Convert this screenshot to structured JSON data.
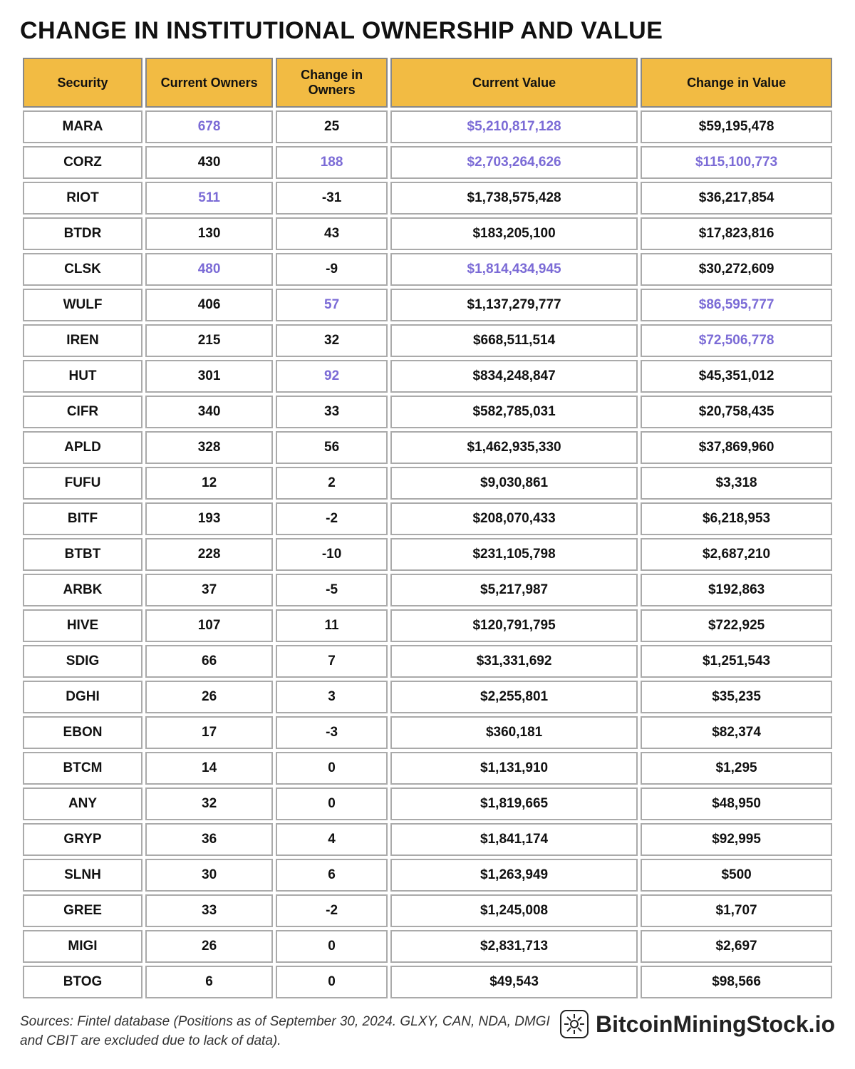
{
  "title": "CHANGE IN INSTITUTIONAL OWNERSHIP AND VALUE",
  "columns": [
    "Security",
    "Current Owners",
    "Change in Owners",
    "Current Value",
    "Change in Value"
  ],
  "highlight_color": "#7b6bd6",
  "header_bg": "#f2bb43",
  "rows": [
    {
      "security": "MARA",
      "owners": "678",
      "owners_hl": true,
      "chg_owners": "25",
      "chg_owners_hl": false,
      "value": "$5,210,817,128",
      "value_hl": true,
      "chg_value": "$59,195,478",
      "chg_value_hl": false
    },
    {
      "security": "CORZ",
      "owners": "430",
      "owners_hl": false,
      "chg_owners": "188",
      "chg_owners_hl": true,
      "value": "$2,703,264,626",
      "value_hl": true,
      "chg_value": "$115,100,773",
      "chg_value_hl": true
    },
    {
      "security": "RIOT",
      "owners": "511",
      "owners_hl": true,
      "chg_owners": "-31",
      "chg_owners_hl": false,
      "value": "$1,738,575,428",
      "value_hl": false,
      "chg_value": "$36,217,854",
      "chg_value_hl": false
    },
    {
      "security": "BTDR",
      "owners": "130",
      "owners_hl": false,
      "chg_owners": "43",
      "chg_owners_hl": false,
      "value": "$183,205,100",
      "value_hl": false,
      "chg_value": "$17,823,816",
      "chg_value_hl": false
    },
    {
      "security": "CLSK",
      "owners": "480",
      "owners_hl": true,
      "chg_owners": "-9",
      "chg_owners_hl": false,
      "value": "$1,814,434,945",
      "value_hl": true,
      "chg_value": "$30,272,609",
      "chg_value_hl": false
    },
    {
      "security": "WULF",
      "owners": "406",
      "owners_hl": false,
      "chg_owners": "57",
      "chg_owners_hl": true,
      "value": "$1,137,279,777",
      "value_hl": false,
      "chg_value": "$86,595,777",
      "chg_value_hl": true
    },
    {
      "security": "IREN",
      "owners": "215",
      "owners_hl": false,
      "chg_owners": "32",
      "chg_owners_hl": false,
      "value": "$668,511,514",
      "value_hl": false,
      "chg_value": "$72,506,778",
      "chg_value_hl": true
    },
    {
      "security": "HUT",
      "owners": "301",
      "owners_hl": false,
      "chg_owners": "92",
      "chg_owners_hl": true,
      "value": "$834,248,847",
      "value_hl": false,
      "chg_value": "$45,351,012",
      "chg_value_hl": false
    },
    {
      "security": "CIFR",
      "owners": "340",
      "owners_hl": false,
      "chg_owners": "33",
      "chg_owners_hl": false,
      "value": "$582,785,031",
      "value_hl": false,
      "chg_value": "$20,758,435",
      "chg_value_hl": false
    },
    {
      "security": "APLD",
      "owners": "328",
      "owners_hl": false,
      "chg_owners": "56",
      "chg_owners_hl": false,
      "value": "$1,462,935,330",
      "value_hl": false,
      "chg_value": "$37,869,960",
      "chg_value_hl": false
    },
    {
      "security": "FUFU",
      "owners": "12",
      "owners_hl": false,
      "chg_owners": "2",
      "chg_owners_hl": false,
      "value": "$9,030,861",
      "value_hl": false,
      "chg_value": "$3,318",
      "chg_value_hl": false
    },
    {
      "security": "BITF",
      "owners": "193",
      "owners_hl": false,
      "chg_owners": "-2",
      "chg_owners_hl": false,
      "value": "$208,070,433",
      "value_hl": false,
      "chg_value": "$6,218,953",
      "chg_value_hl": false
    },
    {
      "security": "BTBT",
      "owners": "228",
      "owners_hl": false,
      "chg_owners": "-10",
      "chg_owners_hl": false,
      "value": "$231,105,798",
      "value_hl": false,
      "chg_value": "$2,687,210",
      "chg_value_hl": false
    },
    {
      "security": "ARBK",
      "owners": "37",
      "owners_hl": false,
      "chg_owners": "-5",
      "chg_owners_hl": false,
      "value": "$5,217,987",
      "value_hl": false,
      "chg_value": "$192,863",
      "chg_value_hl": false
    },
    {
      "security": "HIVE",
      "owners": "107",
      "owners_hl": false,
      "chg_owners": "11",
      "chg_owners_hl": false,
      "value": "$120,791,795",
      "value_hl": false,
      "chg_value": "$722,925",
      "chg_value_hl": false
    },
    {
      "security": "SDIG",
      "owners": "66",
      "owners_hl": false,
      "chg_owners": "7",
      "chg_owners_hl": false,
      "value": "$31,331,692",
      "value_hl": false,
      "chg_value": "$1,251,543",
      "chg_value_hl": false
    },
    {
      "security": "DGHI",
      "owners": "26",
      "owners_hl": false,
      "chg_owners": "3",
      "chg_owners_hl": false,
      "value": "$2,255,801",
      "value_hl": false,
      "chg_value": "$35,235",
      "chg_value_hl": false
    },
    {
      "security": "EBON",
      "owners": "17",
      "owners_hl": false,
      "chg_owners": "-3",
      "chg_owners_hl": false,
      "value": "$360,181",
      "value_hl": false,
      "chg_value": "$82,374",
      "chg_value_hl": false
    },
    {
      "security": "BTCM",
      "owners": "14",
      "owners_hl": false,
      "chg_owners": "0",
      "chg_owners_hl": false,
      "value": "$1,131,910",
      "value_hl": false,
      "chg_value": "$1,295",
      "chg_value_hl": false
    },
    {
      "security": "ANY",
      "owners": "32",
      "owners_hl": false,
      "chg_owners": "0",
      "chg_owners_hl": false,
      "value": "$1,819,665",
      "value_hl": false,
      "chg_value": "$48,950",
      "chg_value_hl": false
    },
    {
      "security": "GRYP",
      "owners": "36",
      "owners_hl": false,
      "chg_owners": "4",
      "chg_owners_hl": false,
      "value": "$1,841,174",
      "value_hl": false,
      "chg_value": "$92,995",
      "chg_value_hl": false
    },
    {
      "security": "SLNH",
      "owners": "30",
      "owners_hl": false,
      "chg_owners": "6",
      "chg_owners_hl": false,
      "value": "$1,263,949",
      "value_hl": false,
      "chg_value": "$500",
      "chg_value_hl": false
    },
    {
      "security": "GREE",
      "owners": "33",
      "owners_hl": false,
      "chg_owners": "-2",
      "chg_owners_hl": false,
      "value": "$1,245,008",
      "value_hl": false,
      "chg_value": "$1,707",
      "chg_value_hl": false
    },
    {
      "security": "MIGI",
      "owners": "26",
      "owners_hl": false,
      "chg_owners": "0",
      "chg_owners_hl": false,
      "value": "$2,831,713",
      "value_hl": false,
      "chg_value": "$2,697",
      "chg_value_hl": false
    },
    {
      "security": "BTOG",
      "owners": "6",
      "owners_hl": false,
      "chg_owners": "0",
      "chg_owners_hl": false,
      "value": "$49,543",
      "value_hl": false,
      "chg_value": "$98,566",
      "chg_value_hl": false
    }
  ],
  "source_text": "Sources:  Fintel database (Positions as of September 30, 2024. GLXY, CAN, NDA,  DMGI and CBIT are excluded due to lack of data).",
  "brand_text": "BitcoinMiningStock.io",
  "col_widths": [
    "15%",
    "16%",
    "14%",
    "31%",
    "24%"
  ]
}
